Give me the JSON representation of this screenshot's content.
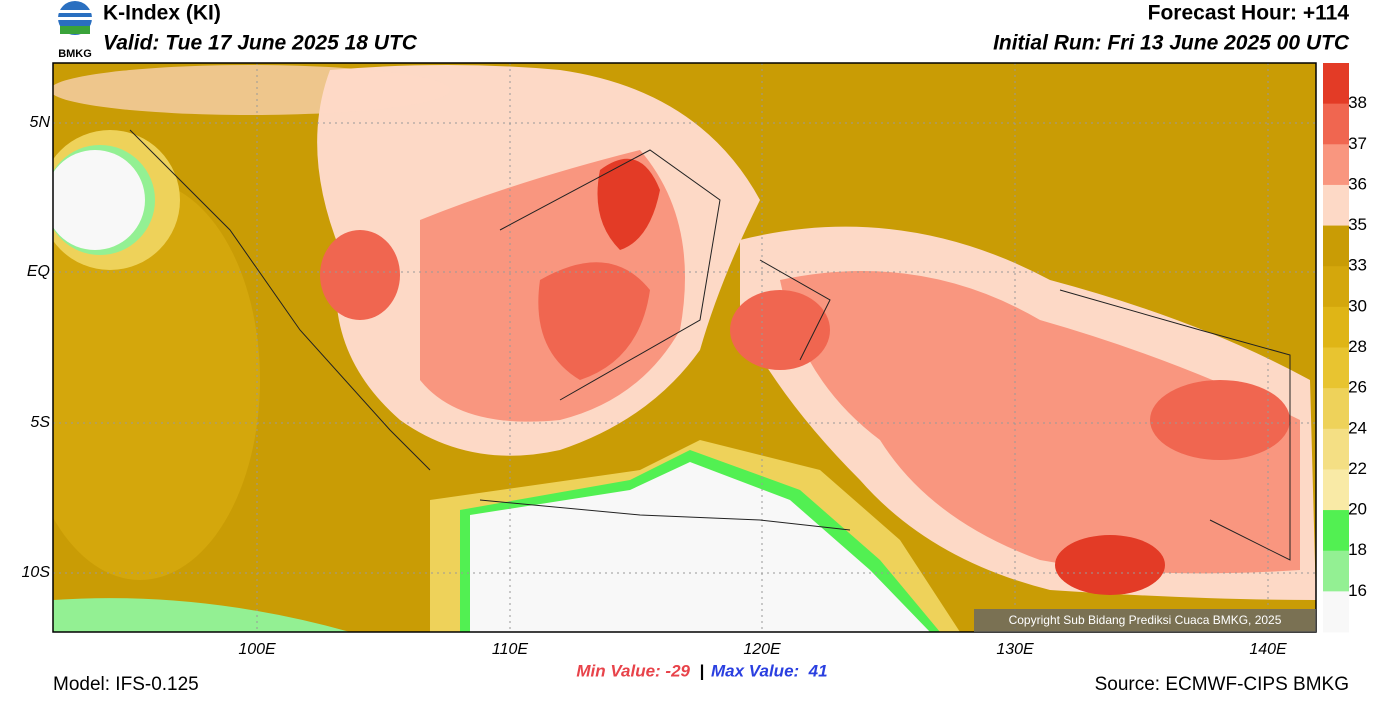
{
  "header": {
    "title": "K-Index (KI)",
    "valid": "Valid: Tue 17 June 2025 18 UTC",
    "forecast": "Forecast Hour: +114",
    "initial": "Initial Run: Fri 13 June 2025 00 UTC",
    "logo": "BMKG"
  },
  "map": {
    "lat_labels": [
      "5N",
      "EQ",
      "5S",
      "10S"
    ],
    "lon_labels": [
      "100E",
      "110E",
      "120E",
      "130E",
      "140E"
    ],
    "copyright": "Copyright Sub Bidang Prediksi Cuaca BMKG, 2025"
  },
  "colorbar": {
    "colors": [
      "#e33b26",
      "#f06650",
      "#f9967f",
      "#fdd9c6",
      "#c99c05",
      "#d4a70c",
      "#dfb516",
      "#e8c430",
      "#eed25a",
      "#f4df84",
      "#f9eaa6",
      "#52f052",
      "#93f093",
      "#f8f8f8"
    ],
    "labels": [
      "38",
      "37",
      "36",
      "35",
      "33",
      "30",
      "28",
      "26",
      "24",
      "22",
      "20",
      "18",
      "16"
    ]
  },
  "footer": {
    "min": "Min Value: -29",
    "separator": "|",
    "max": "Max Value:  41",
    "model": "Model: IFS-0.125",
    "source": "Source: ECMWF-CIPS BMKG"
  }
}
